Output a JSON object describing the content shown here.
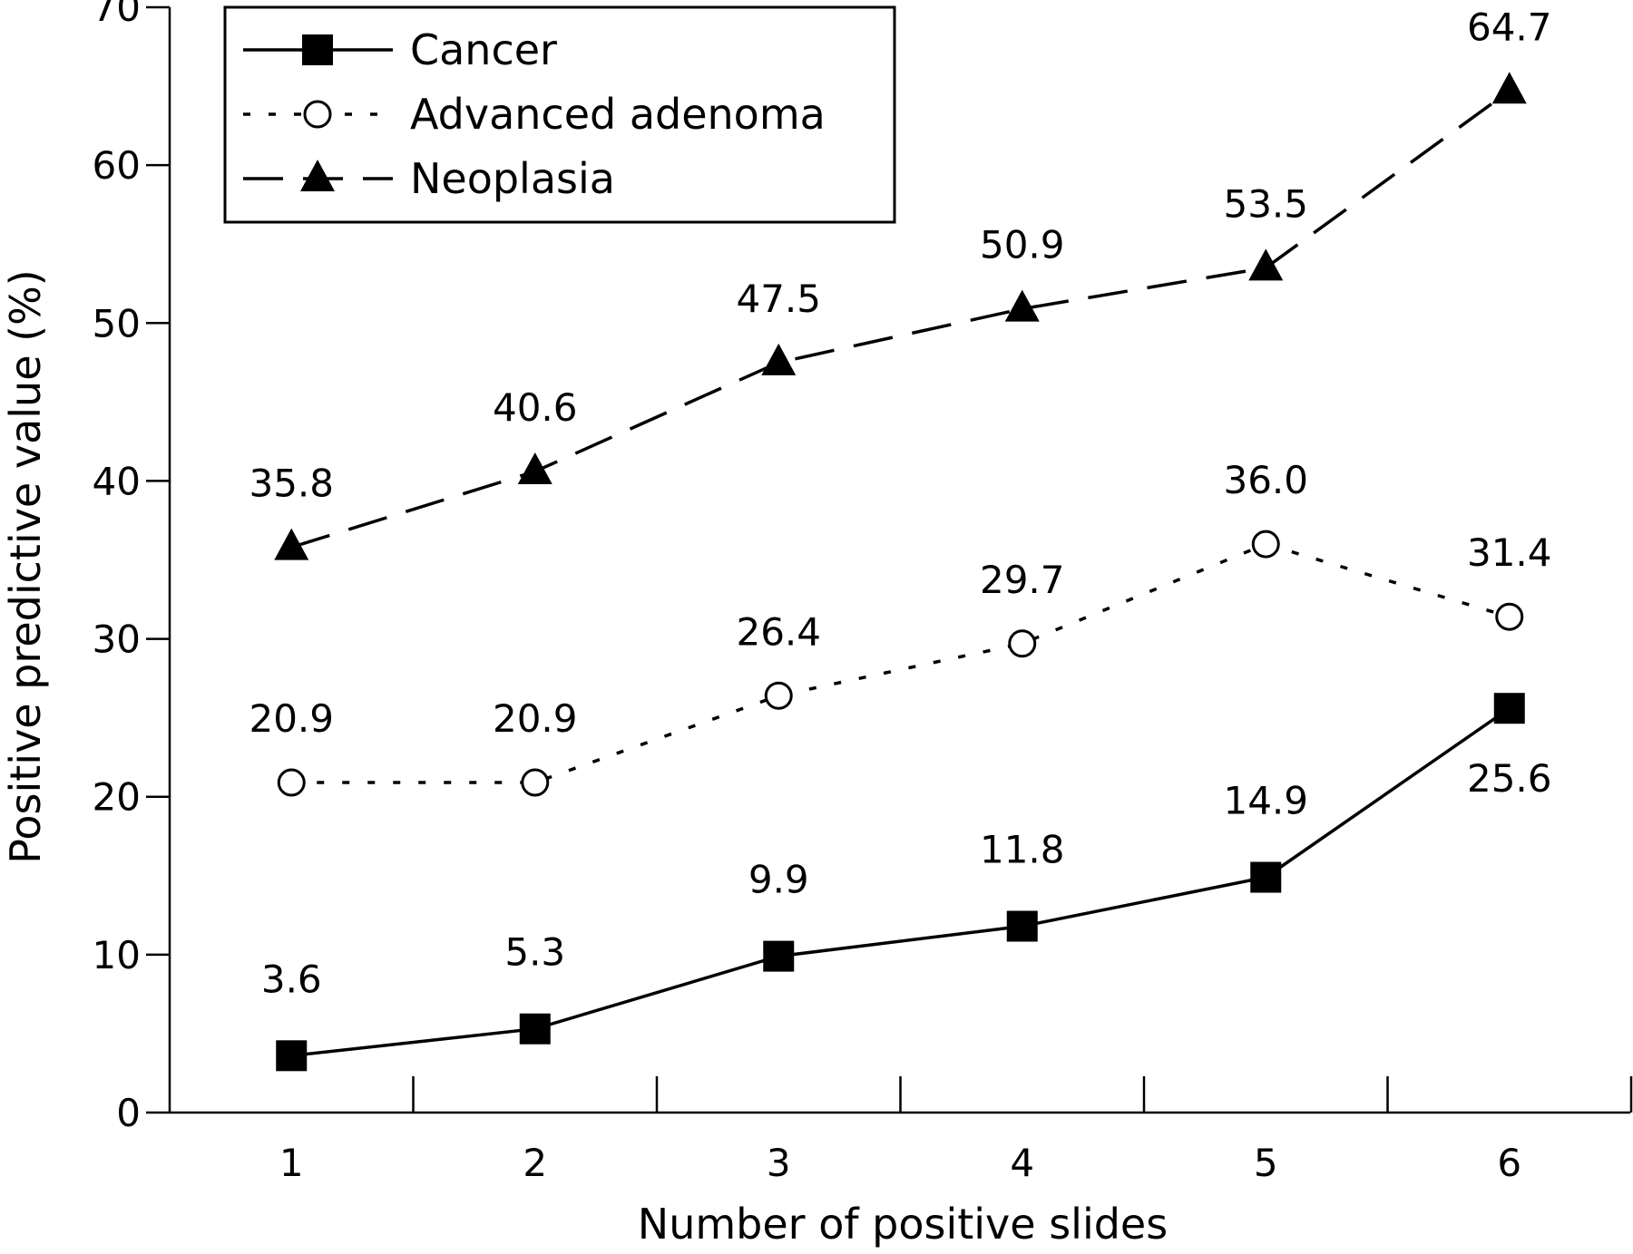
{
  "chart_data": {
    "type": "line",
    "title": "",
    "xlabel": "Number of positive slides",
    "ylabel": "Positive predictive value (%)",
    "x": [
      1,
      2,
      3,
      4,
      5,
      6
    ],
    "x_tick_labels": [
      "1",
      "2",
      "3",
      "4",
      "5",
      "6"
    ],
    "ylim": [
      0,
      70
    ],
    "y_ticks": [
      0,
      10,
      20,
      30,
      40,
      50,
      60,
      70
    ],
    "y_tick_labels": [
      "0",
      "10",
      "20",
      "30",
      "40",
      "50",
      "60",
      "70"
    ],
    "grid": false,
    "legend_position": "top-left",
    "series": [
      {
        "name": "Cancer",
        "values": [
          3.6,
          5.3,
          9.9,
          11.8,
          14.9,
          25.6
        ],
        "labels": [
          "3.6",
          "5.3",
          "9.9",
          "11.8",
          "14.9",
          "25.6"
        ],
        "marker": "filled-square",
        "line_style": "solid",
        "color": "#000000"
      },
      {
        "name": "Advanced adenoma",
        "values": [
          20.9,
          20.9,
          26.4,
          29.7,
          36.0,
          31.4
        ],
        "labels": [
          "20.9",
          "20.9",
          "26.4",
          "29.7",
          "36.0",
          "31.4"
        ],
        "marker": "open-circle",
        "line_style": "dotted",
        "color": "#000000"
      },
      {
        "name": "Neoplasia",
        "values": [
          35.8,
          40.6,
          47.5,
          50.9,
          53.5,
          64.7
        ],
        "labels": [
          "35.8",
          "40.6",
          "47.5",
          "50.9",
          "53.5",
          "64.7"
        ],
        "marker": "filled-triangle",
        "line_style": "dashed",
        "color": "#000000"
      }
    ]
  }
}
